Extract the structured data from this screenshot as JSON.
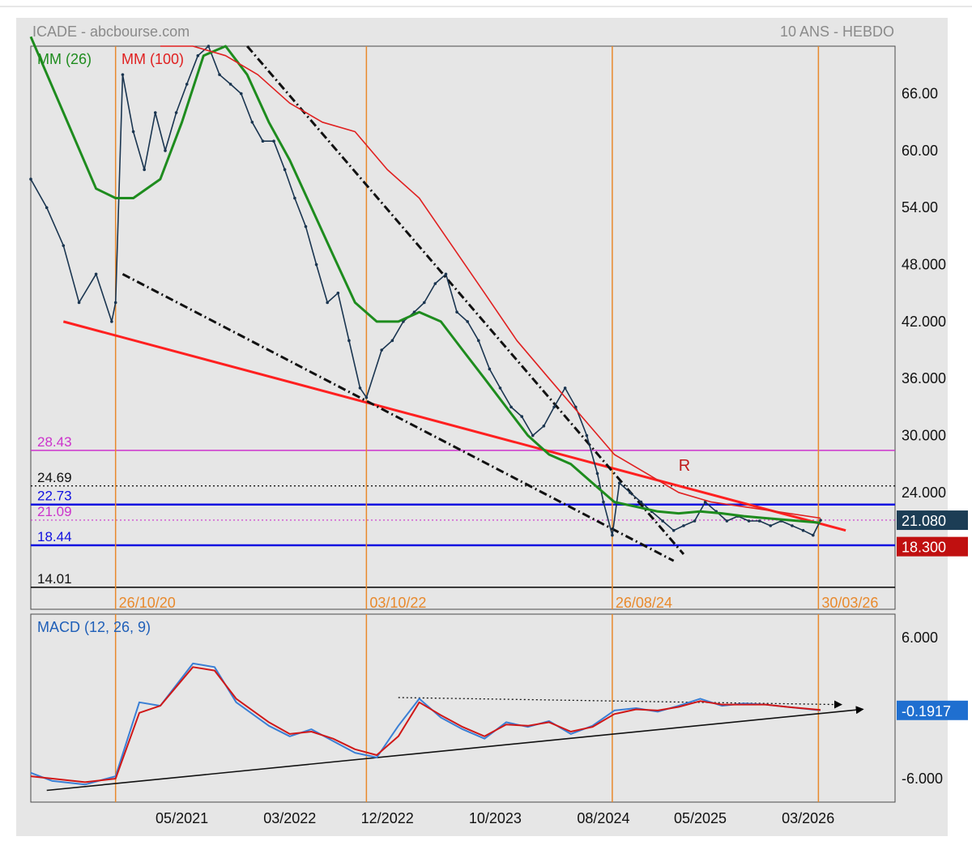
{
  "header": {
    "left_title": "ICADE - abcbourse.com",
    "right_title": "10 ANS - HEBDO"
  },
  "legend": {
    "ma_short": "MM (26)",
    "ma_long": "MM (100)",
    "macd": "MACD (12, 26, 9)"
  },
  "annotations": {
    "resistance_label": "R"
  },
  "colors": {
    "background": "#e6e6e6",
    "price": "#1a3550",
    "ma26": "#1e8c1e",
    "ma100": "#e02020",
    "trend_red": "#ff2020",
    "support_blue": "#1010e0",
    "magenta": "#cc33cc",
    "vertical_markers": "#e8892c",
    "macd_line": "#3a7fd5",
    "signal_line": "#d01818",
    "last_price_badge": "#1c3d55",
    "low_badge": "#c01010",
    "macd_badge": "#1f6fd0"
  },
  "chart_data": [
    {
      "type": "line",
      "title": "ICADE - abcbourse.com",
      "subtitle": "10 ANS - HEBDO",
      "x_range": [
        "2020-03",
        "2026-11"
      ],
      "ylim": [
        11.7,
        71
      ],
      "y_ticks": [
        "66.00",
        "60.00",
        "54.00",
        "48.000",
        "42.000",
        "36.000",
        "30.000",
        "24.000"
      ],
      "y_tick_values": [
        66,
        60,
        54,
        48,
        42,
        36,
        30,
        24
      ],
      "x_ticks": [
        {
          "label": "05/2021",
          "date": "2021-05-01"
        },
        {
          "label": "03/2022",
          "date": "2022-03-01"
        },
        {
          "label": "12/2022",
          "date": "2022-12-01"
        },
        {
          "label": "10/2023",
          "date": "2023-10-01"
        },
        {
          "label": "08/2024",
          "date": "2024-08-01"
        },
        {
          "label": "05/2025",
          "date": "2025-05-01"
        },
        {
          "label": "03/2026",
          "date": "2026-03-01"
        }
      ],
      "vertical_markers": [
        {
          "label": "26/10/20",
          "date": "2020-10-26"
        },
        {
          "label": "03/10/22",
          "date": "2022-10-03"
        },
        {
          "label": "26/08/24",
          "date": "2024-08-26"
        },
        {
          "label": "30/03/26",
          "date": "2026-03-30"
        }
      ],
      "horizontal_levels": [
        {
          "label": "28.43",
          "value": 28.43,
          "style": "magenta"
        },
        {
          "label": "24.69",
          "value": 24.69,
          "style": "dotted-black"
        },
        {
          "label": "22.73",
          "value": 22.73,
          "style": "blue"
        },
        {
          "label": "21.09",
          "value": 21.09,
          "style": "dotted-magenta"
        },
        {
          "label": "18.44",
          "value": 18.44,
          "style": "blue"
        },
        {
          "label": "14.01",
          "value": 14.01,
          "style": "black"
        }
      ],
      "badges": [
        {
          "label": "21.080",
          "value": 21.08,
          "style": "last"
        },
        {
          "label": "18.300",
          "value": 18.3,
          "style": "low"
        }
      ],
      "series": [
        {
          "name": "Price",
          "x": [
            "2020-03-01",
            "2020-04-15",
            "2020-06-01",
            "2020-07-15",
            "2020-09-01",
            "2020-10-15",
            "2020-10-26",
            "2020-11-15",
            "2020-12-15",
            "2021-01-15",
            "2021-02-15",
            "2021-03-15",
            "2021-04-15",
            "2021-05-15",
            "2021-06-15",
            "2021-07-15",
            "2021-08-15",
            "2021-09-15",
            "2021-10-15",
            "2021-11-15",
            "2021-12-15",
            "2022-01-15",
            "2022-02-15",
            "2022-03-15",
            "2022-04-15",
            "2022-05-15",
            "2022-06-15",
            "2022-07-15",
            "2022-08-15",
            "2022-09-15",
            "2022-10-03",
            "2022-11-15",
            "2022-12-15",
            "2023-01-15",
            "2023-02-15",
            "2023-03-15",
            "2023-04-15",
            "2023-05-15",
            "2023-06-15",
            "2023-07-15",
            "2023-08-15",
            "2023-09-15",
            "2023-10-15",
            "2023-11-15",
            "2023-12-15",
            "2024-01-15",
            "2024-02-15",
            "2024-03-15",
            "2024-04-15",
            "2024-05-15",
            "2024-06-15",
            "2024-07-15",
            "2024-08-01",
            "2024-08-26",
            "2024-09-15",
            "2024-10-15",
            "2024-11-15",
            "2024-12-15",
            "2025-01-15",
            "2025-02-15",
            "2025-03-15",
            "2025-04-15",
            "2025-05-15",
            "2025-06-15",
            "2025-07-15",
            "2025-08-15",
            "2025-09-15",
            "2025-10-15",
            "2025-11-15",
            "2025-12-15",
            "2026-01-15",
            "2026-02-15",
            "2026-03-15",
            "2026-04-05"
          ],
          "values": [
            57,
            54,
            50,
            44,
            47,
            42,
            44,
            68,
            62,
            58,
            64,
            60,
            64,
            67,
            70,
            71,
            68,
            67,
            66,
            63,
            61,
            61,
            58,
            55,
            52,
            48,
            44,
            45,
            40,
            35,
            34,
            39,
            40,
            42,
            43,
            44,
            46,
            47,
            43,
            42,
            40,
            37,
            35,
            33,
            32,
            30,
            31,
            33,
            35,
            33,
            30,
            26,
            23,
            19.5,
            25,
            24,
            23,
            22,
            21,
            20,
            20.5,
            21,
            23,
            22,
            21,
            21.5,
            21,
            21,
            20.5,
            21,
            20.5,
            20,
            19.5,
            21.08
          ]
        },
        {
          "name": "MM (26)",
          "x": [
            "2020-03-01",
            "2020-06-01",
            "2020-09-01",
            "2020-10-26",
            "2020-12-15",
            "2021-03-01",
            "2021-05-01",
            "2021-07-01",
            "2021-09-01",
            "2021-11-01",
            "2022-01-01",
            "2022-03-01",
            "2022-05-01",
            "2022-07-01",
            "2022-09-01",
            "2022-11-01",
            "2023-01-01",
            "2023-03-01",
            "2023-05-01",
            "2023-07-01",
            "2023-09-01",
            "2023-11-01",
            "2024-01-01",
            "2024-03-01",
            "2024-05-01",
            "2024-07-01",
            "2024-09-01",
            "2024-11-01",
            "2025-01-01",
            "2025-03-01",
            "2025-05-01",
            "2025-07-01",
            "2025-09-01",
            "2025-11-01",
            "2026-01-01",
            "2026-04-05"
          ],
          "values": [
            72,
            64,
            56,
            55,
            55,
            57,
            63,
            70,
            71,
            68,
            63,
            59,
            54,
            49,
            44,
            42,
            42,
            43,
            42,
            39,
            36,
            33,
            30,
            28,
            27,
            25,
            23,
            22.5,
            22,
            21.8,
            22,
            21.8,
            21.5,
            21.3,
            21.1,
            20.8
          ]
        },
        {
          "name": "MM (100)",
          "x": [
            "2021-03-01",
            "2021-06-01",
            "2021-09-01",
            "2021-12-01",
            "2022-03-01",
            "2022-06-01",
            "2022-09-01",
            "2022-12-01",
            "2023-03-01",
            "2023-06-01",
            "2023-09-01",
            "2023-12-01",
            "2024-03-01",
            "2024-06-01",
            "2024-09-01",
            "2024-12-01",
            "2025-03-01",
            "2025-06-01",
            "2025-09-01",
            "2025-12-01",
            "2026-04-05"
          ],
          "values": [
            71,
            71,
            70,
            68,
            65,
            63,
            62,
            58,
            55,
            50,
            45,
            40,
            36,
            32,
            28,
            26,
            24,
            23,
            22.5,
            22,
            21.3
          ]
        }
      ],
      "trendlines": [
        {
          "name": "resistance",
          "from": {
            "x": "2020-06-01",
            "y": 42
          },
          "to": {
            "x": "2026-06-15",
            "y": 20
          }
        },
        {
          "name": "upper-channel",
          "from": {
            "x": "2021-11-01",
            "y": 71
          },
          "to": {
            "x": "2025-03-15",
            "y": 17.5
          }
        },
        {
          "name": "lower-channel",
          "from": {
            "x": "2020-11-15",
            "y": 47
          },
          "to": {
            "x": "2025-02-15",
            "y": 16.8
          }
        }
      ],
      "resistance_marker": {
        "x": "2025-03-01",
        "y": 26.3
      }
    },
    {
      "type": "line",
      "title": "MACD (12, 26, 9)",
      "x_range": [
        "2020-03",
        "2026-11"
      ],
      "ylim": [
        -8,
        8
      ],
      "y_ticks": [
        "6.000",
        "-6.000"
      ],
      "y_tick_values": [
        6,
        -6
      ],
      "badge": {
        "label": "-0.1917",
        "value": -0.1917
      },
      "series": [
        {
          "name": "MACD",
          "x": [
            "2020-03-01",
            "2020-05-01",
            "2020-08-01",
            "2020-10-26",
            "2021-01-01",
            "2021-03-01",
            "2021-06-01",
            "2021-08-01",
            "2021-10-01",
            "2022-01-01",
            "2022-03-01",
            "2022-05-01",
            "2022-07-01",
            "2022-09-01",
            "2022-11-01",
            "2023-01-01",
            "2023-03-01",
            "2023-05-01",
            "2023-07-01",
            "2023-09-01",
            "2023-11-01",
            "2024-01-01",
            "2024-03-01",
            "2024-05-01",
            "2024-07-01",
            "2024-09-01",
            "2024-11-01",
            "2025-01-01",
            "2025-03-01",
            "2025-05-01",
            "2025-07-01",
            "2025-09-01",
            "2025-11-01",
            "2026-01-01",
            "2026-04-05"
          ],
          "values": [
            -5.5,
            -6.2,
            -6.5,
            -5.8,
            0.5,
            0.2,
            3.8,
            3.5,
            0.5,
            -1.5,
            -2.4,
            -1.8,
            -2.8,
            -3.8,
            -4.2,
            -1.5,
            0.8,
            -0.8,
            -1.8,
            -2.6,
            -1.2,
            -1.6,
            -1.1,
            -2.2,
            -1.5,
            -0.2,
            0,
            -0.3,
            0.2,
            0.8,
            0.2,
            0.4,
            0.3,
            0.1,
            -0.19
          ]
        },
        {
          "name": "Signal",
          "x": [
            "2020-03-01",
            "2020-05-01",
            "2020-08-01",
            "2020-10-26",
            "2021-01-01",
            "2021-03-01",
            "2021-06-01",
            "2021-08-01",
            "2021-10-01",
            "2022-01-01",
            "2022-03-01",
            "2022-05-01",
            "2022-07-01",
            "2022-09-01",
            "2022-11-01",
            "2023-01-01",
            "2023-03-01",
            "2023-05-01",
            "2023-07-01",
            "2023-09-01",
            "2023-11-01",
            "2024-01-01",
            "2024-03-01",
            "2024-05-01",
            "2024-07-01",
            "2024-09-01",
            "2024-11-01",
            "2025-01-01",
            "2025-03-01",
            "2025-05-01",
            "2025-07-01",
            "2025-09-01",
            "2025-11-01",
            "2026-01-01",
            "2026-04-05"
          ],
          "values": [
            -5.8,
            -6.0,
            -6.3,
            -6.0,
            -0.4,
            0.2,
            3.5,
            3.2,
            0.8,
            -1.2,
            -2.2,
            -2.0,
            -2.6,
            -3.5,
            -4.0,
            -2.4,
            0.5,
            -0.6,
            -1.6,
            -2.4,
            -1.4,
            -1.5,
            -1.2,
            -2.0,
            -1.6,
            -0.5,
            -0.1,
            -0.2,
            0.1,
            0.6,
            0.3,
            0.3,
            0.3,
            0.1,
            -0.15
          ]
        }
      ],
      "trendlines": [
        {
          "name": "support",
          "from": {
            "x": "2020-04-15",
            "y": -7
          },
          "to": {
            "x": "2026-08-01",
            "y": -0.1
          }
        },
        {
          "name": "dotted-resistance",
          "from": {
            "x": "2023-01-01",
            "y": 0.9
          },
          "to": {
            "x": "2026-06-01",
            "y": 0.3
          }
        }
      ]
    }
  ]
}
